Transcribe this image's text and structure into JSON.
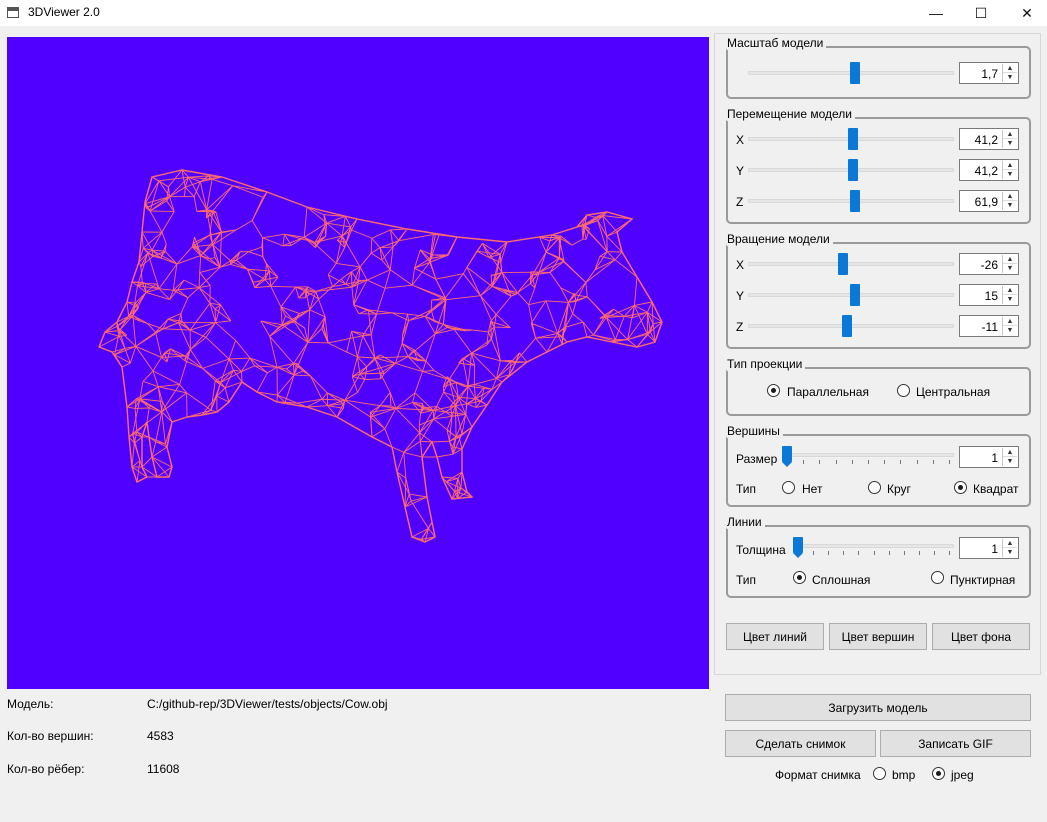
{
  "window": {
    "title": "3DViewer 2.0",
    "minimize": "—",
    "maximize": "☐",
    "close": "✕"
  },
  "viewport": {
    "background": "#5000ff",
    "line_color": "#ff6b6b"
  },
  "scale": {
    "title": "Масштаб модели",
    "value": "1,7",
    "position": 0.52
  },
  "move": {
    "title": "Перемещение модели",
    "x": {
      "label": "X",
      "value": "41,2",
      "position": 0.51
    },
    "y": {
      "label": "Y",
      "value": "41,2",
      "position": 0.51
    },
    "z": {
      "label": "Z",
      "value": "61,9",
      "position": 0.52
    }
  },
  "rotate": {
    "title": "Вращение модели",
    "x": {
      "label": "X",
      "value": "-26",
      "position": 0.46
    },
    "y": {
      "label": "Y",
      "value": "15",
      "position": 0.52
    },
    "z": {
      "label": "Z",
      "value": "-11",
      "position": 0.48
    }
  },
  "projection": {
    "title": "Тип проекции",
    "parallel": "Параллельная",
    "central": "Центральная",
    "selected": "parallel"
  },
  "vertices": {
    "title": "Вершины",
    "size_label": "Размер",
    "size_value": "1",
    "size_position": 0,
    "type_label": "Тип",
    "none": "Нет",
    "circle": "Круг",
    "square": "Квадрат",
    "selected": "square"
  },
  "lines": {
    "title": "Линии",
    "thickness_label": "Толщина",
    "thickness_value": "1",
    "thickness_position": 0,
    "type_label": "Тип",
    "solid": "Сплошная",
    "dashed": "Пунктирная",
    "selected": "solid"
  },
  "color_buttons": {
    "lines": "Цвет линий",
    "vertices": "Цвет вершин",
    "background": "Цвет фона"
  },
  "actions": {
    "load": "Загрузить модель",
    "snapshot": "Сделать снимок",
    "gif": "Записать GIF"
  },
  "format": {
    "label": "Формат снимка",
    "bmp": "bmp",
    "jpeg": "jpeg",
    "selected": "jpeg"
  },
  "info": {
    "model_label": "Модель:",
    "model_value": "C:/github-rep/3DViewer/tests/objects/Cow.obj",
    "vertices_label": "Кол-во вершин:",
    "vertices_value": "4583",
    "edges_label": "Кол-во рёбер:",
    "edges_value": "11608"
  }
}
